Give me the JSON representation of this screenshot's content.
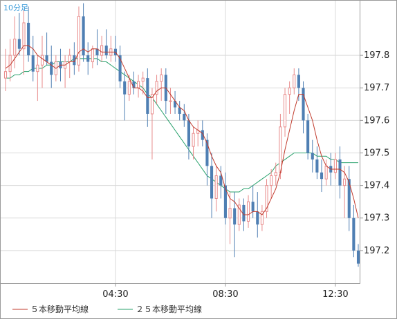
{
  "timeframe_label": "10分足",
  "legend": [
    {
      "name": "５本移動平均線",
      "color": "#c0392b"
    },
    {
      "name": "２５本移動平均線",
      "color": "#27a06b"
    }
  ],
  "colors": {
    "up": "#e88a8a",
    "down": "#4f7fb3",
    "ma5": "#c0392b",
    "ma25": "#27a06b",
    "grid": "#d9d9d9",
    "frame": "#999999"
  },
  "chart_data": {
    "type": "candlestick",
    "y_ticks": [
      197.2,
      197.3,
      197.4,
      197.5,
      197.6,
      197.7,
      197.8
    ],
    "x_tick_labels": [
      {
        "label": "04:30",
        "x": "04:30"
      },
      {
        "label": "08:30",
        "x": "08:30"
      },
      {
        "label": "12:30",
        "x": "12:30"
      }
    ],
    "ylim": [
      197.1,
      197.97
    ],
    "grid": true,
    "candles": [
      [
        197.73,
        197.82,
        197.69,
        197.75
      ],
      [
        197.75,
        197.85,
        197.72,
        197.8
      ],
      [
        197.8,
        197.92,
        197.76,
        197.85
      ],
      [
        197.85,
        197.93,
        197.8,
        197.82
      ],
      [
        197.82,
        197.94,
        197.74,
        197.9
      ],
      [
        197.9,
        197.95,
        197.78,
        197.8
      ],
      [
        197.8,
        197.86,
        197.72,
        197.75
      ],
      [
        197.75,
        197.8,
        197.66,
        197.77
      ],
      [
        197.77,
        197.86,
        197.7,
        197.8
      ],
      [
        197.8,
        197.87,
        197.77,
        197.78
      ],
      [
        197.78,
        197.83,
        197.7,
        197.74
      ],
      [
        197.74,
        197.8,
        197.72,
        197.78
      ],
      [
        197.78,
        197.82,
        197.72,
        197.76
      ],
      [
        197.76,
        197.8,
        197.7,
        197.78
      ],
      [
        197.78,
        197.82,
        197.73,
        197.8
      ],
      [
        197.8,
        197.84,
        197.74,
        197.77
      ],
      [
        197.77,
        197.95,
        197.75,
        197.92
      ],
      [
        197.92,
        197.96,
        197.78,
        197.8
      ],
      [
        197.8,
        197.84,
        197.74,
        197.78
      ],
      [
        197.78,
        197.83,
        197.76,
        197.82
      ],
      [
        197.82,
        197.88,
        197.77,
        197.8
      ],
      [
        197.8,
        197.86,
        197.78,
        197.83
      ],
      [
        197.83,
        197.88,
        197.79,
        197.8
      ],
      [
        197.8,
        197.86,
        197.78,
        197.82
      ],
      [
        197.82,
        197.86,
        197.78,
        197.8
      ],
      [
        197.8,
        197.83,
        197.7,
        197.72
      ],
      [
        197.72,
        197.75,
        197.6,
        197.68
      ],
      [
        197.68,
        197.74,
        197.66,
        197.72
      ],
      [
        197.72,
        197.75,
        197.68,
        197.7
      ],
      [
        197.7,
        197.74,
        197.67,
        197.72
      ],
      [
        197.72,
        197.75,
        197.68,
        197.73
      ],
      [
        197.73,
        197.76,
        197.58,
        197.62
      ],
      [
        197.62,
        197.7,
        197.48,
        197.68
      ],
      [
        197.68,
        197.74,
        197.65,
        197.72
      ],
      [
        197.72,
        197.76,
        197.66,
        197.74
      ],
      [
        197.74,
        197.76,
        197.62,
        197.66
      ],
      [
        197.66,
        197.7,
        197.62,
        197.66
      ],
      [
        197.66,
        197.69,
        197.62,
        197.64
      ],
      [
        197.64,
        197.66,
        197.6,
        197.62
      ],
      [
        197.62,
        197.65,
        197.58,
        197.6
      ],
      [
        197.6,
        197.62,
        197.48,
        197.52
      ],
      [
        197.52,
        197.58,
        197.48,
        197.56
      ],
      [
        197.56,
        197.6,
        197.52,
        197.57
      ],
      [
        197.57,
        197.6,
        197.52,
        197.54
      ],
      [
        197.54,
        197.56,
        197.4,
        197.46
      ],
      [
        197.46,
        197.5,
        197.3,
        197.36
      ],
      [
        197.36,
        197.46,
        197.32,
        197.43
      ],
      [
        197.43,
        197.46,
        197.36,
        197.4
      ],
      [
        197.4,
        197.44,
        197.28,
        197.3
      ],
      [
        197.3,
        197.38,
        197.22,
        197.33
      ],
      [
        197.33,
        197.38,
        197.18,
        197.28
      ],
      [
        197.28,
        197.36,
        197.26,
        197.34
      ],
      [
        197.34,
        197.36,
        197.26,
        197.29
      ],
      [
        197.29,
        197.37,
        197.27,
        197.35
      ],
      [
        197.35,
        197.4,
        197.3,
        197.32
      ],
      [
        197.32,
        197.38,
        197.24,
        197.28
      ],
      [
        197.28,
        197.34,
        197.26,
        197.32
      ],
      [
        197.32,
        197.42,
        197.3,
        197.4
      ],
      [
        197.4,
        197.45,
        197.36,
        197.43
      ],
      [
        197.43,
        197.47,
        197.4,
        197.44
      ],
      [
        197.44,
        197.62,
        197.42,
        197.58
      ],
      [
        197.58,
        197.7,
        197.55,
        197.68
      ],
      [
        197.68,
        197.72,
        197.62,
        197.7
      ],
      [
        197.7,
        197.76,
        197.68,
        197.74
      ],
      [
        197.74,
        197.76,
        197.66,
        197.7
      ],
      [
        197.7,
        197.72,
        197.56,
        197.6
      ],
      [
        197.6,
        197.62,
        197.48,
        197.5
      ],
      [
        197.5,
        197.54,
        197.44,
        197.48
      ],
      [
        197.48,
        197.52,
        197.42,
        197.44
      ],
      [
        197.44,
        197.48,
        197.38,
        197.42
      ],
      [
        197.42,
        197.48,
        197.4,
        197.46
      ],
      [
        197.46,
        197.5,
        197.4,
        197.44
      ],
      [
        197.44,
        197.5,
        197.42,
        197.48
      ],
      [
        197.48,
        197.52,
        197.36,
        197.4
      ],
      [
        197.4,
        197.46,
        197.3,
        197.42
      ],
      [
        197.42,
        197.46,
        197.26,
        197.3
      ],
      [
        197.3,
        197.34,
        197.18,
        197.2
      ],
      [
        197.2,
        197.22,
        197.15,
        197.16
      ]
    ],
    "ma5": [
      197.76,
      197.77,
      197.79,
      197.81,
      197.83,
      197.83,
      197.82,
      197.8,
      197.79,
      197.78,
      197.77,
      197.76,
      197.77,
      197.77,
      197.78,
      197.78,
      197.81,
      197.82,
      197.81,
      197.82,
      197.82,
      197.81,
      197.81,
      197.81,
      197.81,
      197.79,
      197.76,
      197.73,
      197.7,
      197.7,
      197.69,
      197.67,
      197.67,
      197.69,
      197.7,
      197.7,
      197.68,
      197.66,
      197.64,
      197.63,
      197.6,
      197.58,
      197.57,
      197.56,
      197.53,
      197.49,
      197.46,
      197.44,
      197.39,
      197.36,
      197.35,
      197.33,
      197.31,
      197.31,
      197.32,
      197.32,
      197.31,
      197.33,
      197.36,
      197.39,
      197.44,
      197.51,
      197.57,
      197.63,
      197.68,
      197.68,
      197.64,
      197.6,
      197.54,
      197.49,
      197.46,
      197.45,
      197.45,
      197.45,
      197.44,
      197.41,
      197.36,
      197.3
    ],
    "ma25": [
      197.73,
      197.73,
      197.74,
      197.74,
      197.75,
      197.75,
      197.76,
      197.76,
      197.76,
      197.77,
      197.77,
      197.78,
      197.78,
      197.78,
      197.78,
      197.79,
      197.79,
      197.79,
      197.79,
      197.79,
      197.79,
      197.78,
      197.78,
      197.77,
      197.76,
      197.75,
      197.74,
      197.73,
      197.72,
      197.71,
      197.7,
      197.68,
      197.67,
      197.65,
      197.63,
      197.61,
      197.59,
      197.57,
      197.55,
      197.53,
      197.51,
      197.49,
      197.47,
      197.45,
      197.43,
      197.42,
      197.41,
      197.4,
      197.39,
      197.38,
      197.38,
      197.38,
      197.39,
      197.39,
      197.4,
      197.41,
      197.42,
      197.43,
      197.44,
      197.46,
      197.47,
      197.48,
      197.49,
      197.5,
      197.5,
      197.5,
      197.5,
      197.5,
      197.49,
      197.49,
      197.49,
      197.48,
      197.48,
      197.47,
      197.47,
      197.47,
      197.47,
      197.47
    ]
  }
}
